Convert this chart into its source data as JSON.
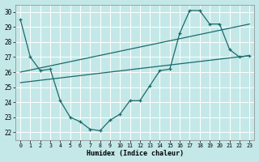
{
  "xlabel": "Humidex (Indice chaleur)",
  "background_color": "#c4e8e8",
  "grid_color": "#ffffff",
  "line_color": "#1a6b6b",
  "xlim": [
    -0.5,
    23.5
  ],
  "ylim": [
    21.5,
    30.5
  ],
  "xticks": [
    0,
    1,
    2,
    3,
    4,
    5,
    6,
    7,
    8,
    9,
    10,
    11,
    12,
    13,
    14,
    15,
    16,
    17,
    18,
    19,
    20,
    21,
    22,
    23
  ],
  "yticks": [
    22,
    23,
    24,
    25,
    26,
    27,
    28,
    29,
    30
  ],
  "series_main": {
    "x": [
      0,
      1,
      2,
      3,
      4,
      5,
      6,
      7,
      8,
      9,
      10,
      11,
      12,
      13,
      14,
      15,
      16,
      17,
      18,
      19,
      20,
      21,
      22,
      23
    ],
    "y": [
      29.5,
      27.0,
      26.1,
      26.2,
      24.1,
      23.0,
      22.7,
      22.2,
      22.1,
      22.8,
      23.2,
      24.1,
      24.1,
      25.1,
      26.1,
      26.2,
      28.6,
      30.1,
      30.1,
      29.2,
      29.2,
      27.5,
      27.0,
      27.1
    ]
  },
  "series_trend1": {
    "x": [
      0,
      23
    ],
    "y": [
      26.0,
      29.2
    ]
  },
  "series_trend2": {
    "x": [
      0,
      23
    ],
    "y": [
      25.3,
      27.1
    ]
  }
}
